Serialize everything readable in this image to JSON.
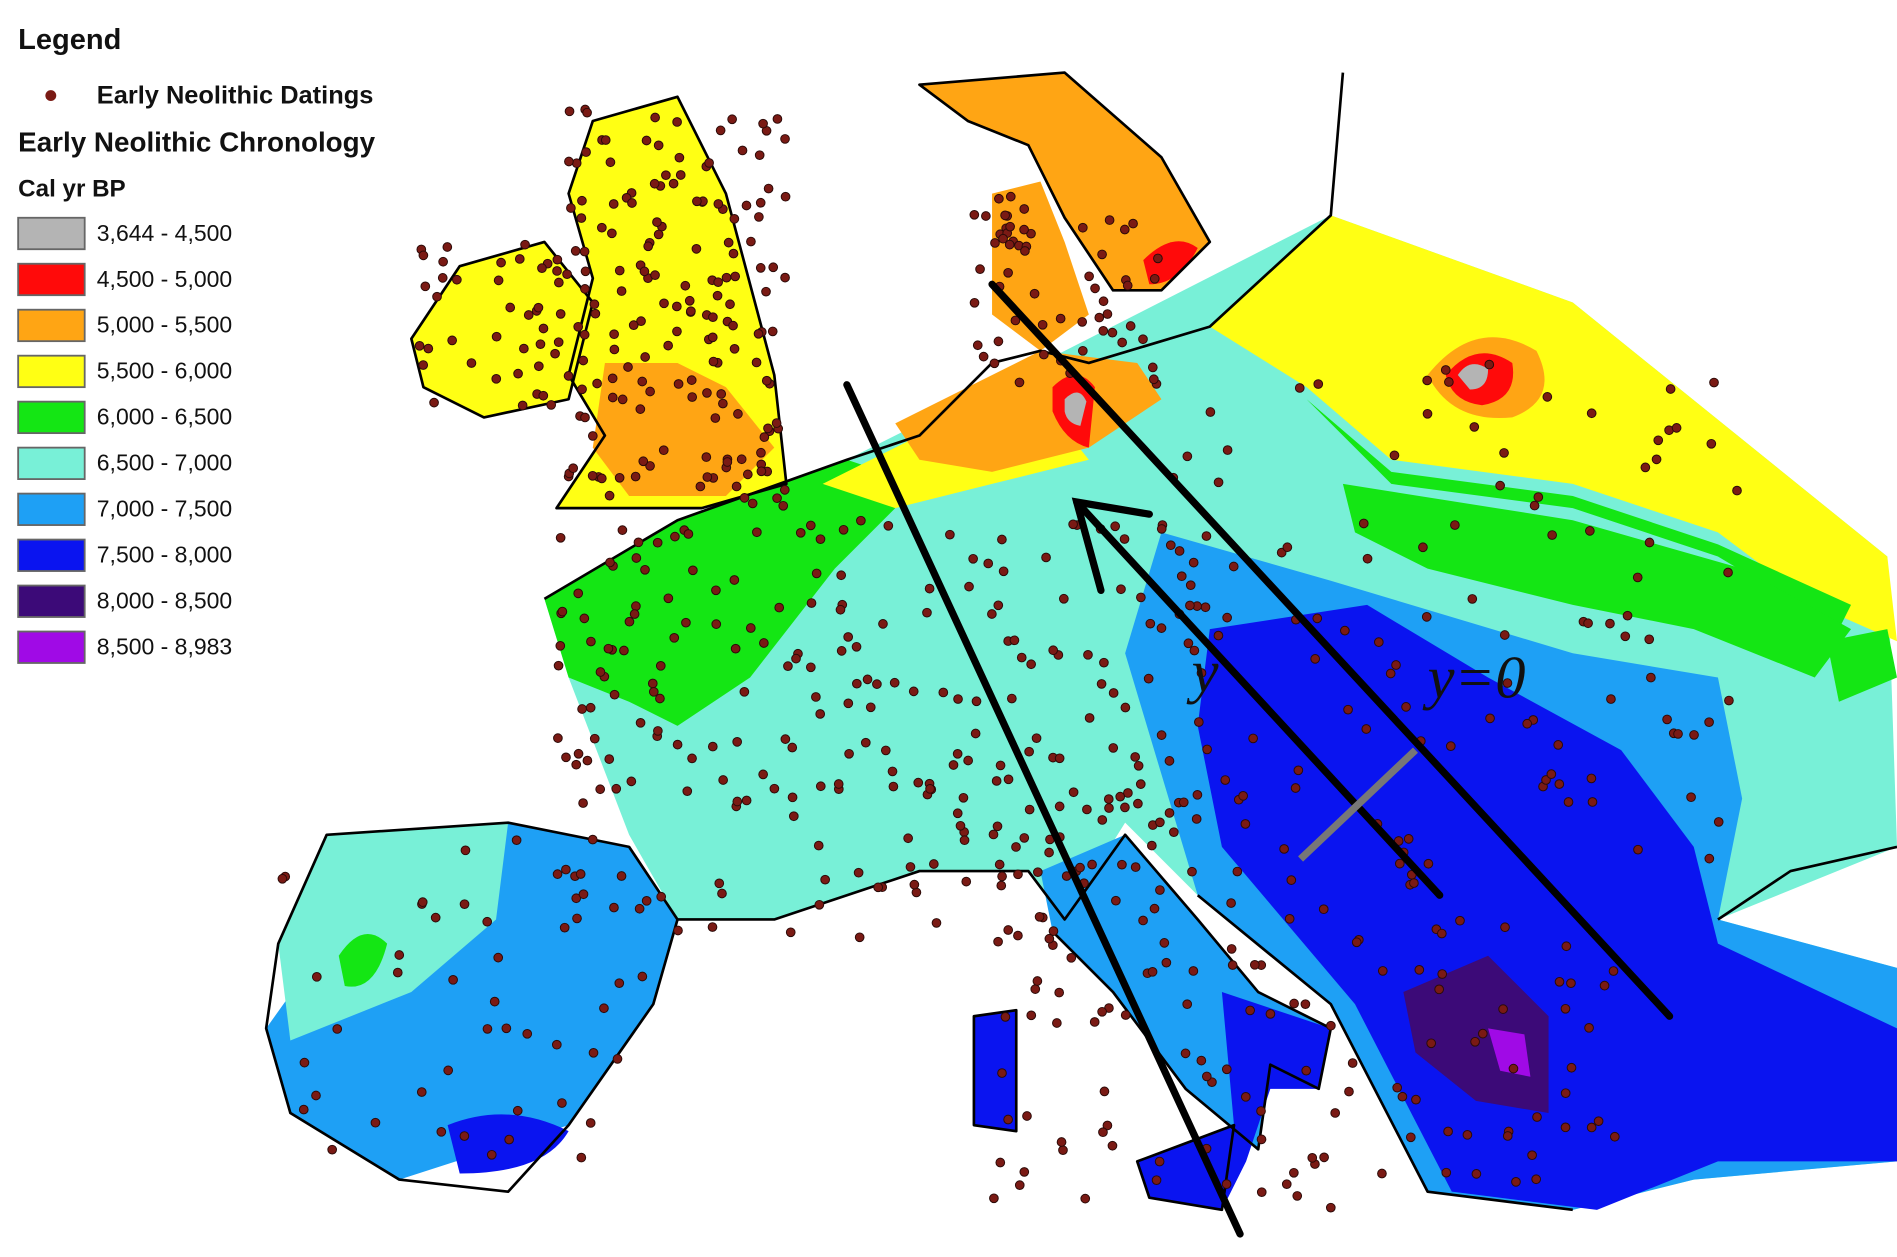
{
  "legend": {
    "title": "Legend",
    "points_label": "Early Neolithic Datings",
    "chronology_title": "Early Neolithic Chronology",
    "unit": "Cal yr BP",
    "point_color": "#7a1a14",
    "items": [
      {
        "label": "3,644 - 4,500",
        "color": "#b4b4b4"
      },
      {
        "label": "4,500 - 5,000",
        "color": "#ff0a0a"
      },
      {
        "label": "5,000 - 5,500",
        "color": "#ffa514"
      },
      {
        "label": "5,500 - 6,000",
        "color": "#ffff14"
      },
      {
        "label": "6,000 - 6,500",
        "color": "#14e614"
      },
      {
        "label": "6,500 - 7,000",
        "color": "#78f0d7"
      },
      {
        "label": "7,000 - 7,500",
        "color": "#1ea0f5"
      },
      {
        "label": "7,500 - 8,000",
        "color": "#0a14f0"
      },
      {
        "label": "8,000 - 8,500",
        "color": "#3c0a78"
      },
      {
        "label": "8,500 - 8,983",
        "color": "#a00ae6"
      }
    ]
  },
  "annotations": {
    "front": "y",
    "origin": "y=0"
  }
}
